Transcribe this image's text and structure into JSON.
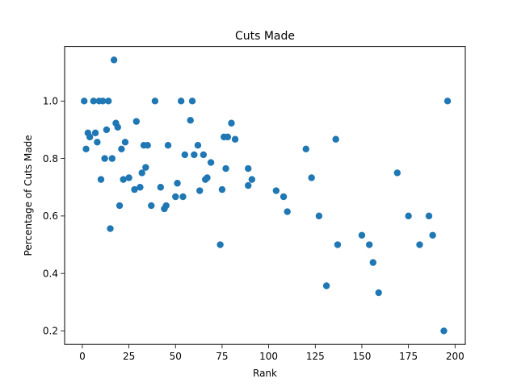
{
  "chart_data": {
    "type": "scatter",
    "title": "Cuts Made",
    "xlabel": "Rank",
    "ylabel": "Percentage of Cuts Made",
    "xlim": [
      -9.5,
      205.5
    ],
    "ylim": [
      0.153,
      1.19
    ],
    "xticks": [
      0,
      25,
      50,
      75,
      100,
      125,
      150,
      175,
      200
    ],
    "yticks": [
      0.2,
      0.4,
      0.6,
      0.8,
      1.0
    ],
    "xtick_labels": [
      "0",
      "25",
      "50",
      "75",
      "100",
      "125",
      "150",
      "175",
      "200"
    ],
    "ytick_labels": [
      "0.2",
      "0.4",
      "0.6",
      "0.8",
      "1.0"
    ],
    "grid": false,
    "color": "#1f77b4",
    "points": [
      {
        "x": 1,
        "y": 1.0
      },
      {
        "x": 2,
        "y": 0.833
      },
      {
        "x": 3,
        "y": 0.889
      },
      {
        "x": 4,
        "y": 0.875
      },
      {
        "x": 6,
        "y": 1.0
      },
      {
        "x": 7,
        "y": 0.889
      },
      {
        "x": 8,
        "y": 0.857
      },
      {
        "x": 9,
        "y": 1.0
      },
      {
        "x": 10,
        "y": 0.727
      },
      {
        "x": 11,
        "y": 1.0
      },
      {
        "x": 12,
        "y": 0.8
      },
      {
        "x": 13,
        "y": 0.9
      },
      {
        "x": 14,
        "y": 1.0
      },
      {
        "x": 15,
        "y": 0.556
      },
      {
        "x": 16,
        "y": 0.8
      },
      {
        "x": 17,
        "y": 1.143
      },
      {
        "x": 18,
        "y": 0.923
      },
      {
        "x": 19,
        "y": 0.909
      },
      {
        "x": 20,
        "y": 0.636
      },
      {
        "x": 21,
        "y": 0.833
      },
      {
        "x": 22,
        "y": 0.727
      },
      {
        "x": 23,
        "y": 0.857
      },
      {
        "x": 25,
        "y": 0.733
      },
      {
        "x": 28,
        "y": 0.692
      },
      {
        "x": 29,
        "y": 0.929
      },
      {
        "x": 31,
        "y": 0.7
      },
      {
        "x": 32,
        "y": 0.75
      },
      {
        "x": 33,
        "y": 0.846
      },
      {
        "x": 34,
        "y": 0.769
      },
      {
        "x": 35,
        "y": 0.846
      },
      {
        "x": 37,
        "y": 0.636
      },
      {
        "x": 39,
        "y": 1.0
      },
      {
        "x": 42,
        "y": 0.7
      },
      {
        "x": 44,
        "y": 0.625
      },
      {
        "x": 45,
        "y": 0.636
      },
      {
        "x": 46,
        "y": 0.846
      },
      {
        "x": 50,
        "y": 0.667
      },
      {
        "x": 51,
        "y": 0.714
      },
      {
        "x": 53,
        "y": 1.0
      },
      {
        "x": 54,
        "y": 0.667
      },
      {
        "x": 55,
        "y": 0.813
      },
      {
        "x": 58,
        "y": 0.933
      },
      {
        "x": 59,
        "y": 1.0
      },
      {
        "x": 60,
        "y": 0.813
      },
      {
        "x": 62,
        "y": 0.846
      },
      {
        "x": 63,
        "y": 0.688
      },
      {
        "x": 65,
        "y": 0.813
      },
      {
        "x": 66,
        "y": 0.727
      },
      {
        "x": 67,
        "y": 0.733
      },
      {
        "x": 69,
        "y": 0.786
      },
      {
        "x": 74,
        "y": 0.5
      },
      {
        "x": 75,
        "y": 0.692
      },
      {
        "x": 76,
        "y": 0.875
      },
      {
        "x": 77,
        "y": 0.765
      },
      {
        "x": 78,
        "y": 0.875
      },
      {
        "x": 80,
        "y": 0.923
      },
      {
        "x": 82,
        "y": 0.867
      },
      {
        "x": 89,
        "y": 0.706
      },
      {
        "x": 89,
        "y": 0.765
      },
      {
        "x": 91,
        "y": 0.727
      },
      {
        "x": 104,
        "y": 0.688
      },
      {
        "x": 108,
        "y": 0.667
      },
      {
        "x": 110,
        "y": 0.615
      },
      {
        "x": 120,
        "y": 0.833
      },
      {
        "x": 123,
        "y": 0.733
      },
      {
        "x": 127,
        "y": 0.6
      },
      {
        "x": 131,
        "y": 0.357
      },
      {
        "x": 136,
        "y": 0.867
      },
      {
        "x": 137,
        "y": 0.5
      },
      {
        "x": 150,
        "y": 0.533
      },
      {
        "x": 154,
        "y": 0.5
      },
      {
        "x": 156,
        "y": 0.438
      },
      {
        "x": 159,
        "y": 0.333
      },
      {
        "x": 169,
        "y": 0.75
      },
      {
        "x": 175,
        "y": 0.6
      },
      {
        "x": 181,
        "y": 0.5
      },
      {
        "x": 186,
        "y": 0.6
      },
      {
        "x": 188,
        "y": 0.533
      },
      {
        "x": 194,
        "y": 0.2
      },
      {
        "x": 196,
        "y": 1.0
      }
    ]
  }
}
